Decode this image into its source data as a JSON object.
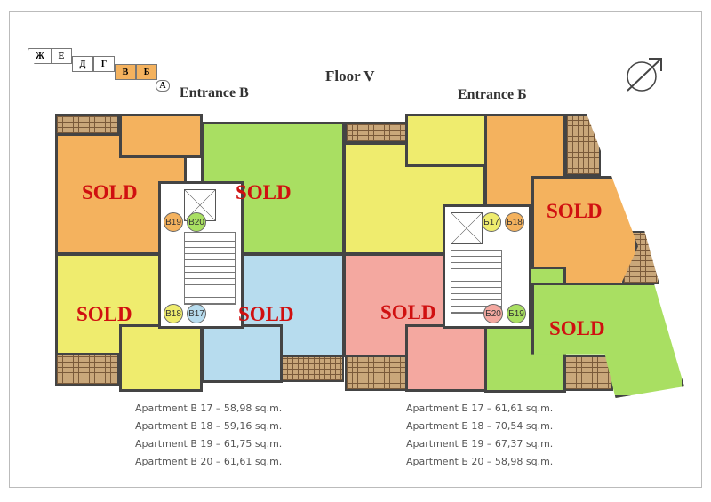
{
  "floor_title": "Floor V",
  "entrances": {
    "left": "Entrance В",
    "right": "Entrance Б"
  },
  "section_key": {
    "labels": [
      "Ж",
      "Е",
      "Д",
      "Г",
      "В",
      "Б",
      "А"
    ],
    "highlighted": [
      "В",
      "Б"
    ]
  },
  "colors": {
    "orange": "#f4b25e",
    "green": "#a9df62",
    "yellow": "#efec6e",
    "blue": "#b7dcee",
    "pink": "#f4a8a0",
    "sold": "#d01010"
  },
  "apartments": [
    {
      "id": "В19",
      "color": "#f4b25e",
      "status": "SOLD"
    },
    {
      "id": "В20",
      "color": "#a9df62",
      "status": "SOLD"
    },
    {
      "id": "В18",
      "color": "#efec6e",
      "status": "SOLD"
    },
    {
      "id": "В17",
      "color": "#b7dcee",
      "status": "SOLD"
    },
    {
      "id": "Б17",
      "color": "#efec6e",
      "status": ""
    },
    {
      "id": "Б18",
      "color": "#f4b25e",
      "status": "SOLD"
    },
    {
      "id": "Б20",
      "color": "#f4a8a0",
      "status": "SOLD"
    },
    {
      "id": "Б19",
      "color": "#a9df62",
      "status": "SOLD"
    }
  ],
  "legend": {
    "left": [
      "Apartment В 17 – 58,98 sq.m.",
      "Apartment В 18 – 59,16 sq.m.",
      "Apartment В 19 – 61,75 sq.m.",
      "Apartment В 20 – 61,61 sq.m."
    ],
    "right": [
      "Apartment Б 17 – 61,61 sq.m.",
      "Apartment Б 18 – 70,54 sq.m.",
      "Apartment Б 19 – 67,37 sq.m.",
      "Apartment Б 20 – 58,98 sq.m."
    ]
  },
  "compass_icon": "north-arrow"
}
